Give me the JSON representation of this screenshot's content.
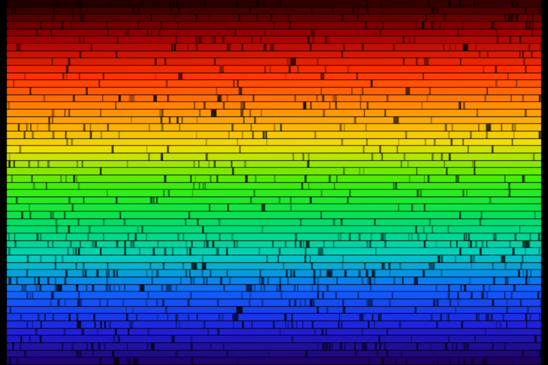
{
  "image": {
    "subject": "solar-spectrum",
    "background_color": "#000000",
    "spectrum_colors": [
      "#200000",
      "#a00000",
      "#ff3000",
      "#ff9000",
      "#f0e000",
      "#40f000",
      "#00e060",
      "#00d0c0",
      "#1060ff",
      "#2020e0",
      "#200060"
    ]
  }
}
